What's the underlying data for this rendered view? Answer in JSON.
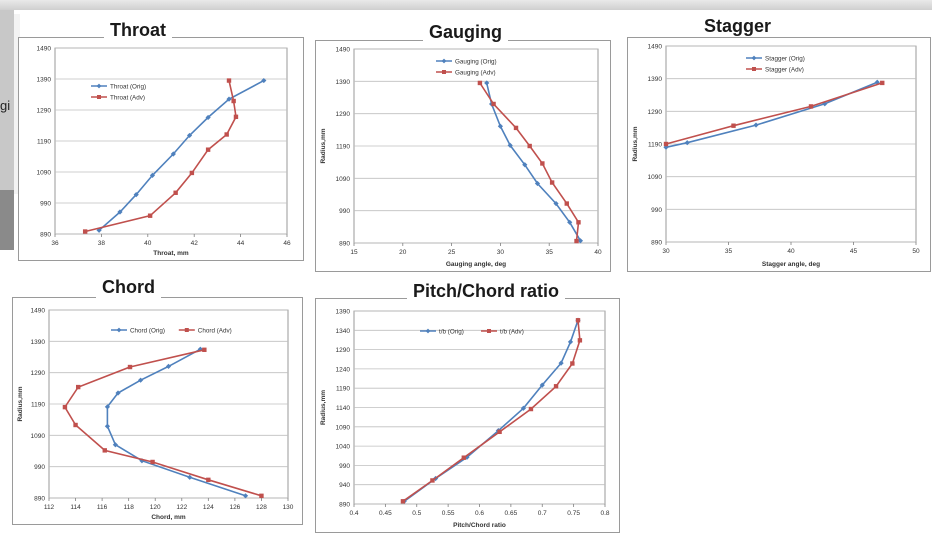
{
  "left_edge_fragment": "gi",
  "colors": {
    "orig": "#4f81bd",
    "adv": "#c0504d",
    "grid": "#bfbfbf",
    "axis": "#7f7f7f"
  },
  "chart_data": [
    {
      "type": "line",
      "title": "Throat",
      "xlabel": "Throat, mm",
      "ylabel": "",
      "xlim": [
        36,
        46
      ],
      "ylim": [
        890,
        1490
      ],
      "xticks": [
        36,
        38,
        40,
        42,
        44,
        46
      ],
      "yticks": [
        890,
        990,
        1090,
        1190,
        1290,
        1390,
        1490
      ],
      "legend": "top-left",
      "series": [
        {
          "name": "Throat (Orig)",
          "points": [
            [
              37.9,
              902
            ],
            [
              38.8,
              961
            ],
            [
              39.5,
              1017
            ],
            [
              40.2,
              1079
            ],
            [
              41.1,
              1148
            ],
            [
              41.8,
              1208
            ],
            [
              42.6,
              1266
            ],
            [
              43.5,
              1325
            ],
            [
              45.0,
              1385
            ]
          ]
        },
        {
          "name": "Throat (Adv)",
          "points": [
            [
              37.3,
              898
            ],
            [
              40.1,
              949
            ],
            [
              41.2,
              1023
            ],
            [
              41.9,
              1087
            ],
            [
              42.6,
              1162
            ],
            [
              43.4,
              1211
            ],
            [
              43.8,
              1268
            ],
            [
              43.7,
              1319
            ],
            [
              43.5,
              1385
            ]
          ]
        }
      ]
    },
    {
      "type": "line",
      "title": "Gauging",
      "xlabel": "Gauging angle, deg",
      "ylabel": "Radius,mm",
      "xlim": [
        15,
        40
      ],
      "ylim": [
        890,
        1490
      ],
      "xticks": [
        15,
        20,
        25,
        30,
        35,
        40
      ],
      "yticks": [
        890,
        990,
        1090,
        1190,
        1290,
        1390,
        1490
      ],
      "legend": "top-left",
      "series": [
        {
          "name": "Gauging (Orig)",
          "points": [
            [
              38.2,
              897
            ],
            [
              37.1,
              954
            ],
            [
              35.7,
              1012
            ],
            [
              33.8,
              1074
            ],
            [
              32.5,
              1132
            ],
            [
              31.0,
              1192
            ],
            [
              30.0,
              1251
            ],
            [
              29.1,
              1320
            ],
            [
              28.6,
              1385
            ]
          ]
        },
        {
          "name": "Gauging (Adv)",
          "points": [
            [
              37.8,
              896
            ],
            [
              38.0,
              954
            ],
            [
              36.8,
              1012
            ],
            [
              35.3,
              1077
            ],
            [
              34.3,
              1136
            ],
            [
              33.0,
              1190
            ],
            [
              31.6,
              1246
            ],
            [
              29.3,
              1320
            ],
            [
              27.9,
              1385
            ]
          ]
        }
      ]
    },
    {
      "type": "line",
      "title": "Stagger",
      "xlabel": "Stagger angle, deg",
      "ylabel": "Radius,mm",
      "xlim": [
        30,
        50
      ],
      "ylim": [
        890,
        1490
      ],
      "xticks": [
        30,
        35,
        40,
        45,
        50
      ],
      "yticks": [
        890,
        990,
        1090,
        1190,
        1290,
        1390,
        1490
      ],
      "legend": "top-center",
      "series": [
        {
          "name": "Stagger (Orig)",
          "points": [
            [
              30.0,
              1180
            ],
            [
              31.7,
              1194
            ],
            [
              37.2,
              1248
            ],
            [
              42.7,
              1313
            ],
            [
              46.9,
              1379
            ]
          ]
        },
        {
          "name": "Stagger (Adv)",
          "points": [
            [
              30.0,
              1190
            ],
            [
              35.4,
              1246
            ],
            [
              41.6,
              1305
            ],
            [
              47.3,
              1377
            ]
          ]
        }
      ]
    },
    {
      "type": "line",
      "title": "Chord",
      "xlabel": "Chord, mm",
      "ylabel": "Radius,mm",
      "xlim": [
        112,
        130
      ],
      "ylim": [
        890,
        1490
      ],
      "xticks": [
        112,
        114,
        116,
        118,
        120,
        122,
        124,
        126,
        128,
        130
      ],
      "yticks": [
        890,
        990,
        1090,
        1190,
        1290,
        1390,
        1490
      ],
      "legend": "top-center",
      "series": [
        {
          "name": "Chord (Orig)",
          "points": [
            [
              126.8,
              897
            ],
            [
              122.6,
              956
            ],
            [
              119.0,
              1009
            ],
            [
              117.0,
              1060
            ],
            [
              116.4,
              1119
            ],
            [
              116.4,
              1181
            ],
            [
              117.2,
              1225
            ],
            [
              118.9,
              1266
            ],
            [
              121.0,
              1310
            ],
            [
              123.4,
              1365
            ]
          ]
        },
        {
          "name": "Chord (Adv)",
          "points": [
            [
              128.0,
              897
            ],
            [
              124.0,
              948
            ],
            [
              119.8,
              1005
            ],
            [
              116.2,
              1042
            ],
            [
              114.0,
              1123
            ],
            [
              113.2,
              1180
            ],
            [
              114.2,
              1244
            ],
            [
              118.1,
              1308
            ],
            [
              123.7,
              1363
            ]
          ]
        }
      ]
    },
    {
      "type": "line",
      "title": "Pitch/Chord ratio",
      "xlabel": "Pitch/Chord ratio",
      "ylabel": "Radius,mm",
      "xlim": [
        0.4,
        0.8
      ],
      "ylim": [
        890,
        1390
      ],
      "xticks": [
        0.4,
        0.45,
        0.5,
        0.55,
        0.6,
        0.65,
        0.7,
        0.75,
        0.8
      ],
      "yticks": [
        890,
        940,
        990,
        1040,
        1090,
        1140,
        1190,
        1240,
        1290,
        1340,
        1390
      ],
      "legend": "top-center",
      "series": [
        {
          "name": "t/b (Orig)",
          "points": [
            [
              0.48,
              897
            ],
            [
              0.53,
              956
            ],
            [
              0.58,
              1011
            ],
            [
              0.63,
              1080
            ],
            [
              0.67,
              1138
            ],
            [
              0.7,
              1198
            ],
            [
              0.73,
              1255
            ],
            [
              0.745,
              1310
            ],
            [
              0.757,
              1366
            ]
          ]
        },
        {
          "name": "t/b (Adv)",
          "points": [
            [
              0.478,
              897
            ],
            [
              0.525,
              951
            ],
            [
              0.575,
              1010
            ],
            [
              0.632,
              1077
            ],
            [
              0.682,
              1136
            ],
            [
              0.722,
              1195
            ],
            [
              0.748,
              1254
            ],
            [
              0.76,
              1314
            ],
            [
              0.757,
              1366
            ]
          ]
        }
      ]
    }
  ]
}
